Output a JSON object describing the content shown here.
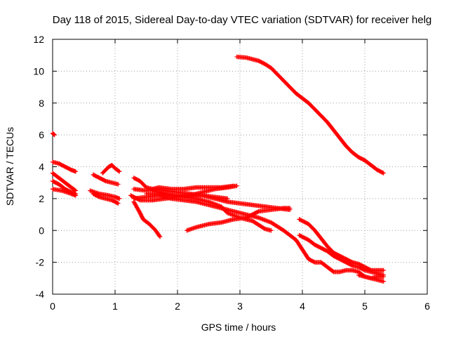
{
  "chart_data": {
    "type": "scatter",
    "title": "Day 118 of 2015, Sidereal Day-to-day VTEC variation (SDTVAR) for receiver helg",
    "xlabel": "GPS time / hours",
    "ylabel": "SDTVAR / TECUs",
    "xlim": [
      0,
      6
    ],
    "ylim": [
      -4,
      12
    ],
    "xticks": [
      0,
      1,
      2,
      3,
      4,
      5,
      6
    ],
    "yticks": [
      -4,
      -2,
      0,
      2,
      4,
      6,
      8,
      10,
      12
    ],
    "grid": true,
    "marker": "+",
    "color": "#ff0000",
    "series": [
      {
        "name": "s1",
        "points": [
          [
            0.0,
            4.3
          ],
          [
            0.1,
            4.2
          ],
          [
            0.2,
            4.0
          ],
          [
            0.3,
            3.8
          ],
          [
            0.37,
            3.7
          ]
        ]
      },
      {
        "name": "s2",
        "points": [
          [
            0.0,
            3.6
          ],
          [
            0.1,
            3.3
          ],
          [
            0.2,
            3.0
          ],
          [
            0.3,
            2.7
          ],
          [
            0.37,
            2.5
          ]
        ]
      },
      {
        "name": "s3",
        "points": [
          [
            0.0,
            3.1
          ],
          [
            0.1,
            2.9
          ],
          [
            0.2,
            2.6
          ],
          [
            0.3,
            2.4
          ],
          [
            0.37,
            2.3
          ]
        ]
      },
      {
        "name": "s4",
        "points": [
          [
            0.0,
            2.6
          ],
          [
            0.15,
            2.5
          ],
          [
            0.3,
            2.3
          ],
          [
            0.37,
            2.2
          ]
        ]
      },
      {
        "name": "s5",
        "points": [
          [
            0.0,
            6.1
          ],
          [
            0.03,
            6.0
          ]
        ]
      },
      {
        "name": "s6",
        "points": [
          [
            0.65,
            2.3
          ],
          [
            0.75,
            2.1
          ],
          [
            0.85,
            2.0
          ],
          [
            0.95,
            1.9
          ],
          [
            1.05,
            1.7
          ]
        ]
      },
      {
        "name": "s7",
        "points": [
          [
            0.65,
            3.5
          ],
          [
            0.75,
            3.3
          ],
          [
            0.85,
            3.1
          ],
          [
            0.95,
            3.0
          ],
          [
            1.05,
            2.9
          ]
        ]
      },
      {
        "name": "s8",
        "points": [
          [
            0.8,
            3.6
          ],
          [
            0.9,
            4.0
          ],
          [
            0.95,
            4.1
          ],
          [
            1.0,
            3.9
          ],
          [
            1.07,
            3.7
          ]
        ]
      },
      {
        "name": "s9",
        "points": [
          [
            0.6,
            2.5
          ],
          [
            0.75,
            2.3
          ],
          [
            0.9,
            2.2
          ],
          [
            1.0,
            2.1
          ],
          [
            1.07,
            2.0
          ]
        ]
      },
      {
        "name": "s10",
        "points": [
          [
            1.3,
            3.3
          ],
          [
            1.4,
            3.1
          ],
          [
            1.5,
            2.7
          ],
          [
            1.6,
            2.6
          ],
          [
            1.8,
            2.5
          ],
          [
            2.0,
            2.4
          ],
          [
            2.2,
            2.3
          ],
          [
            2.4,
            2.2
          ],
          [
            2.6,
            2.1
          ],
          [
            2.8,
            2.0
          ]
        ]
      },
      {
        "name": "s11",
        "points": [
          [
            1.3,
            2.6
          ],
          [
            1.5,
            2.5
          ],
          [
            1.7,
            2.7
          ],
          [
            1.9,
            2.6
          ],
          [
            2.1,
            2.6
          ],
          [
            2.3,
            2.7
          ],
          [
            2.5,
            2.7
          ],
          [
            2.7,
            2.7
          ],
          [
            2.9,
            2.8
          ]
        ]
      },
      {
        "name": "s12",
        "points": [
          [
            1.3,
            1.8
          ],
          [
            1.4,
            1.1
          ],
          [
            1.45,
            0.7
          ],
          [
            1.55,
            0.4
          ],
          [
            1.65,
            0.0
          ],
          [
            1.72,
            -0.4
          ]
        ]
      },
      {
        "name": "s13",
        "points": [
          [
            1.25,
            2.2
          ],
          [
            1.4,
            1.9
          ],
          [
            1.6,
            1.9
          ],
          [
            1.8,
            2.0
          ],
          [
            2.0,
            2.1
          ],
          [
            2.2,
            2.2
          ],
          [
            2.4,
            2.4
          ],
          [
            2.6,
            2.6
          ],
          [
            2.8,
            2.7
          ],
          [
            2.95,
            2.8
          ]
        ]
      },
      {
        "name": "s14",
        "points": [
          [
            1.3,
            2.0
          ],
          [
            1.5,
            2.1
          ],
          [
            1.7,
            2.2
          ],
          [
            1.9,
            2.0
          ],
          [
            2.1,
            1.9
          ],
          [
            2.3,
            1.8
          ],
          [
            2.5,
            1.6
          ],
          [
            2.7,
            1.4
          ],
          [
            2.9,
            1.2
          ],
          [
            3.1,
            1.0
          ],
          [
            3.3,
            0.8
          ],
          [
            3.5,
            0.5
          ],
          [
            3.7,
            0.0
          ],
          [
            3.9,
            -0.6
          ],
          [
            4.0,
            -1.2
          ],
          [
            4.1,
            -1.8
          ],
          [
            4.2,
            -2.0
          ],
          [
            4.3,
            -2.0
          ],
          [
            4.4,
            -2.3
          ],
          [
            4.5,
            -2.6
          ],
          [
            4.6,
            -2.6
          ],
          [
            4.7,
            -2.5
          ],
          [
            4.8,
            -2.5
          ],
          [
            4.9,
            -2.6
          ],
          [
            5.0,
            -2.9
          ],
          [
            5.1,
            -3.0
          ],
          [
            5.2,
            -2.9
          ],
          [
            5.3,
            -2.9
          ]
        ]
      },
      {
        "name": "s15",
        "points": [
          [
            1.5,
            2.3
          ],
          [
            1.7,
            2.3
          ],
          [
            1.9,
            2.2
          ],
          [
            2.1,
            2.1
          ],
          [
            2.3,
            2.0
          ],
          [
            2.5,
            1.8
          ],
          [
            2.7,
            1.5
          ],
          [
            2.8,
            1.1
          ],
          [
            3.0,
            0.8
          ],
          [
            3.2,
            0.6
          ],
          [
            3.4,
            0.1
          ],
          [
            3.5,
            0.0
          ]
        ]
      },
      {
        "name": "s16",
        "points": [
          [
            1.6,
            2.5
          ],
          [
            1.8,
            2.3
          ],
          [
            2.0,
            2.2
          ],
          [
            2.2,
            2.2
          ],
          [
            2.4,
            2.2
          ],
          [
            2.6,
            2.0
          ],
          [
            2.8,
            1.8
          ],
          [
            3.0,
            1.7
          ],
          [
            3.2,
            1.6
          ],
          [
            3.4,
            1.5
          ],
          [
            3.6,
            1.4
          ],
          [
            3.8,
            1.3
          ]
        ]
      },
      {
        "name": "s17",
        "points": [
          [
            2.15,
            0.0
          ],
          [
            2.3,
            0.2
          ],
          [
            2.5,
            0.4
          ],
          [
            2.7,
            0.5
          ],
          [
            2.9,
            0.7
          ],
          [
            3.1,
            0.8
          ],
          [
            3.2,
            1.0
          ],
          [
            3.3,
            1.2
          ],
          [
            3.5,
            1.3
          ],
          [
            3.7,
            1.4
          ],
          [
            3.8,
            1.4
          ]
        ]
      },
      {
        "name": "s18",
        "points": [
          [
            2.95,
            10.9
          ],
          [
            3.1,
            10.85
          ],
          [
            3.2,
            10.75
          ],
          [
            3.3,
            10.65
          ],
          [
            3.4,
            10.45
          ],
          [
            3.5,
            10.2
          ],
          [
            3.6,
            9.8
          ],
          [
            3.7,
            9.4
          ],
          [
            3.8,
            9.0
          ],
          [
            3.9,
            8.6
          ],
          [
            4.0,
            8.3
          ],
          [
            4.1,
            8.0
          ],
          [
            4.2,
            7.6
          ],
          [
            4.3,
            7.2
          ],
          [
            4.4,
            6.8
          ],
          [
            4.5,
            6.3
          ],
          [
            4.6,
            5.8
          ],
          [
            4.7,
            5.3
          ],
          [
            4.8,
            4.9
          ],
          [
            4.9,
            4.6
          ],
          [
            5.0,
            4.4
          ],
          [
            5.1,
            4.1
          ],
          [
            5.2,
            3.8
          ],
          [
            5.3,
            3.6
          ]
        ]
      },
      {
        "name": "s19",
        "points": [
          [
            3.95,
            0.7
          ],
          [
            4.1,
            0.4
          ],
          [
            4.2,
            0.0
          ],
          [
            4.3,
            -0.5
          ],
          [
            4.4,
            -1.0
          ],
          [
            4.5,
            -1.4
          ],
          [
            4.6,
            -1.6
          ],
          [
            4.7,
            -1.8
          ],
          [
            4.8,
            -2.0
          ],
          [
            4.9,
            -2.1
          ],
          [
            5.0,
            -2.3
          ],
          [
            5.1,
            -2.5
          ],
          [
            5.2,
            -2.5
          ],
          [
            5.3,
            -2.5
          ]
        ]
      },
      {
        "name": "s20",
        "points": [
          [
            3.95,
            -0.3
          ],
          [
            4.1,
            -0.6
          ],
          [
            4.2,
            -0.9
          ],
          [
            4.3,
            -1.1
          ],
          [
            4.4,
            -1.3
          ],
          [
            4.5,
            -1.6
          ],
          [
            4.6,
            -1.8
          ],
          [
            4.7,
            -2.0
          ],
          [
            4.8,
            -2.2
          ],
          [
            4.9,
            -2.3
          ],
          [
            5.0,
            -2.5
          ],
          [
            5.1,
            -2.6
          ],
          [
            5.2,
            -2.7
          ],
          [
            5.3,
            -2.8
          ]
        ]
      },
      {
        "name": "s21",
        "points": [
          [
            4.9,
            -2.8
          ],
          [
            5.0,
            -2.9
          ],
          [
            5.1,
            -3.0
          ],
          [
            5.2,
            -3.1
          ],
          [
            5.3,
            -3.2
          ]
        ]
      }
    ]
  }
}
